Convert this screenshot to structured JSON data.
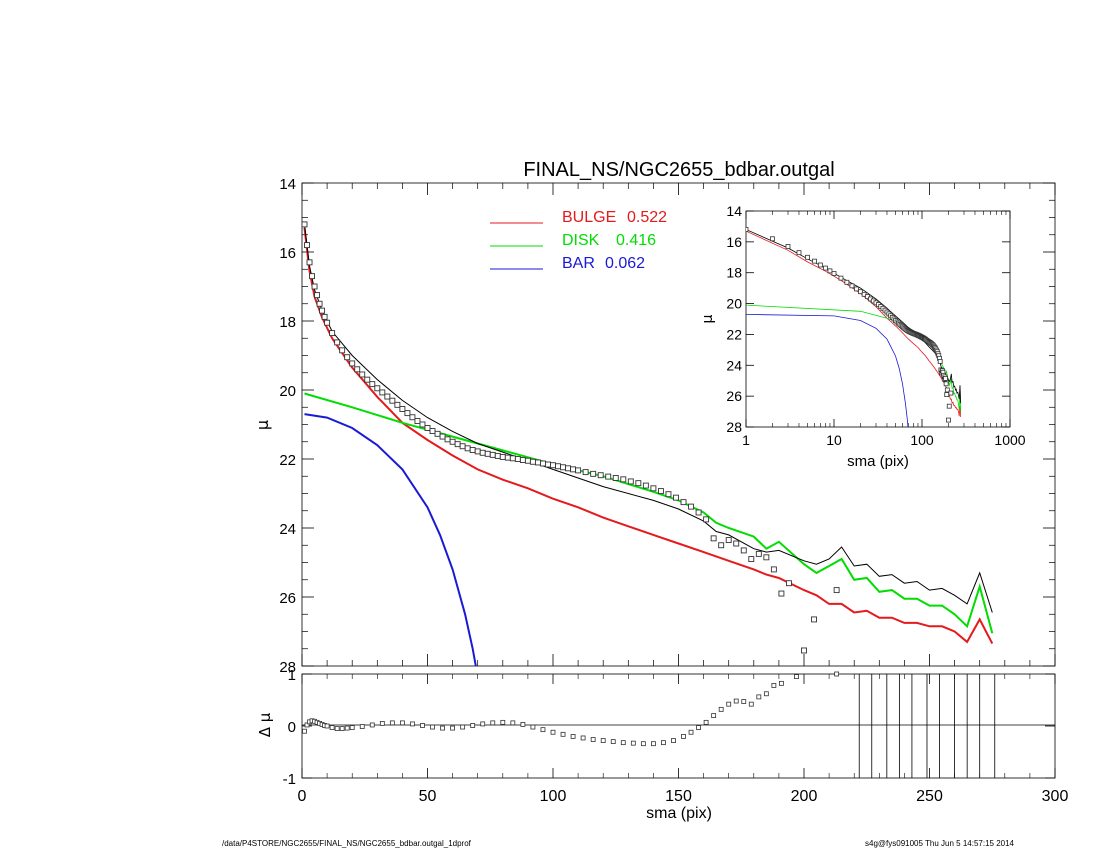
{
  "chart_data": [
    {
      "type": "line",
      "title": "FINAL_NS/NGC2655_bdbar.outgal",
      "xlabel": "sma (pix)",
      "ylabel": "μ",
      "xlim": [
        0,
        300
      ],
      "ylim": [
        28,
        14
      ],
      "xticks": [
        "0",
        "50",
        "100",
        "150",
        "200",
        "250",
        "300"
      ],
      "yticks": [
        "14",
        "16",
        "18",
        "20",
        "22",
        "24",
        "26",
        "28"
      ],
      "legend_position": "top-center",
      "components": [
        {
          "label": "BULGE",
          "fraction": "0.522",
          "color": "#e41a1c"
        },
        {
          "label": "DISK",
          "fraction": "0.416",
          "color": "#00dd00"
        },
        {
          "label": "BAR",
          "fraction": "0.062",
          "color": "#1a1ad4"
        }
      ],
      "series": [
        {
          "name": "BULGE",
          "color": "#e41a1c",
          "x": [
            1,
            3,
            5,
            8,
            12,
            20,
            30,
            40,
            50,
            60,
            70,
            80,
            90,
            100,
            110,
            120,
            130,
            140,
            150,
            160,
            170,
            180,
            185,
            190,
            200,
            205,
            210,
            215,
            220,
            225,
            230,
            235,
            240,
            245,
            250,
            255,
            260,
            265,
            270,
            275
          ],
          "y": [
            15.3,
            16.55,
            17.3,
            17.9,
            18.5,
            19.35,
            20.2,
            20.95,
            21.45,
            21.9,
            22.3,
            22.6,
            22.85,
            23.15,
            23.4,
            23.7,
            23.95,
            24.2,
            24.45,
            24.7,
            24.95,
            25.2,
            25.35,
            25.45,
            25.8,
            25.95,
            26.2,
            26.2,
            26.45,
            26.4,
            26.6,
            26.6,
            26.75,
            26.75,
            26.85,
            26.85,
            27.0,
            27.3,
            26.65,
            27.35
          ]
        },
        {
          "name": "DISK",
          "color": "#00dd00",
          "x": [
            1,
            20,
            40,
            60,
            80,
            100,
            120,
            140,
            150,
            160,
            165,
            170,
            180,
            185,
            190,
            200,
            205,
            210,
            215,
            220,
            225,
            230,
            235,
            240,
            245,
            250,
            255,
            260,
            265,
            270,
            275
          ],
          "y": [
            20.1,
            20.5,
            20.95,
            21.35,
            21.75,
            22.15,
            22.5,
            22.95,
            23.2,
            23.55,
            23.85,
            24.0,
            24.25,
            24.6,
            24.4,
            25.05,
            25.3,
            25.1,
            24.9,
            25.5,
            25.45,
            25.85,
            25.8,
            26.05,
            26.05,
            26.25,
            26.25,
            26.5,
            26.85,
            25.7,
            27.05
          ]
        },
        {
          "name": "BAR",
          "color": "#1a1ad4",
          "x": [
            1,
            10,
            20,
            30,
            40,
            50,
            55,
            60,
            65,
            68,
            70
          ],
          "y": [
            20.7,
            20.8,
            21.1,
            21.6,
            22.3,
            23.4,
            24.2,
            25.2,
            26.5,
            27.5,
            28.3
          ]
        },
        {
          "name": "",
          "color": "#000000",
          "x": [
            1,
            3,
            5,
            8,
            12,
            20,
            30,
            40,
            50,
            60,
            70,
            80,
            90,
            100,
            120,
            140,
            150,
            160,
            165,
            170,
            180,
            185,
            190,
            200,
            205,
            210,
            215,
            220,
            225,
            230,
            235,
            240,
            245,
            250,
            255,
            260,
            265,
            270,
            275
          ],
          "y": [
            15.2,
            16.4,
            17.1,
            17.7,
            18.3,
            19.0,
            19.7,
            20.3,
            20.8,
            21.2,
            21.55,
            21.8,
            22.05,
            22.3,
            22.8,
            23.2,
            23.45,
            23.8,
            24.1,
            24.2,
            24.6,
            24.7,
            24.65,
            24.95,
            25.05,
            24.9,
            24.55,
            25.1,
            25.05,
            25.4,
            25.35,
            25.6,
            25.55,
            25.8,
            25.75,
            25.95,
            26.2,
            25.3,
            26.45
          ]
        }
      ],
      "data_points": {
        "marker": "open-square",
        "x": [
          1,
          2,
          3,
          4,
          5,
          6,
          7,
          8,
          9,
          10,
          12,
          14,
          16,
          18,
          20,
          22,
          24,
          26,
          28,
          30,
          32,
          34,
          36,
          38,
          40,
          42,
          44,
          46,
          48,
          50,
          52,
          54,
          56,
          58,
          60,
          62,
          64,
          66,
          68,
          70,
          72,
          74,
          76,
          78,
          80,
          82,
          84,
          86,
          88,
          90,
          92,
          94,
          96,
          98,
          100,
          102,
          104,
          106,
          108,
          110,
          113,
          116,
          119,
          122,
          125,
          128,
          131,
          134,
          137,
          140,
          143,
          146,
          149,
          152,
          155,
          158,
          161,
          164,
          167,
          170,
          173,
          176,
          179,
          182,
          185,
          188,
          191,
          194,
          200,
          204,
          213
        ],
        "y": [
          15.2,
          15.8,
          16.3,
          16.7,
          17.0,
          17.25,
          17.5,
          17.7,
          17.88,
          18.05,
          18.35,
          18.62,
          18.85,
          19.05,
          19.23,
          19.4,
          19.55,
          19.7,
          19.83,
          19.95,
          20.07,
          20.19,
          20.31,
          20.43,
          20.55,
          20.67,
          20.79,
          20.9,
          21.0,
          21.1,
          21.19,
          21.27,
          21.35,
          21.43,
          21.5,
          21.57,
          21.63,
          21.69,
          21.74,
          21.78,
          21.82,
          21.85,
          21.88,
          21.91,
          21.94,
          21.96,
          21.98,
          22.0,
          22.03,
          22.05,
          22.08,
          22.1,
          22.13,
          22.16,
          22.18,
          22.21,
          22.24,
          22.27,
          22.3,
          22.33,
          22.38,
          22.43,
          22.47,
          22.51,
          22.55,
          22.59,
          22.65,
          22.7,
          22.77,
          22.85,
          22.93,
          23.02,
          23.12,
          23.25,
          23.38,
          23.55,
          23.75,
          24.3,
          24.5,
          24.35,
          24.45,
          24.65,
          24.9,
          24.75,
          24.85,
          25.2,
          25.9,
          25.6,
          27.55,
          26.65,
          25.8
        ]
      }
    },
    {
      "type": "line",
      "title": "",
      "xlabel": "sma (pix)",
      "ylabel": "μ",
      "x_scale": "log",
      "xlim": [
        1,
        1000
      ],
      "ylim": [
        28,
        14
      ],
      "xticks": [
        "1",
        "10",
        "100",
        "1000"
      ],
      "yticks": [
        "14",
        "16",
        "18",
        "20",
        "22",
        "24",
        "26",
        "28"
      ]
    },
    {
      "type": "scatter",
      "title": "",
      "xlabel": "sma (pix)",
      "ylabel": "Δ μ",
      "xlim": [
        0,
        300
      ],
      "ylim": [
        -1,
        1
      ],
      "xticks": [
        "0",
        "50",
        "100",
        "150",
        "200",
        "250",
        "300"
      ],
      "yticks": [
        "-1",
        "0",
        "1"
      ],
      "residuals": {
        "x": [
          1,
          2,
          3,
          4,
          5,
          6,
          7,
          8,
          9,
          10,
          12,
          14,
          16,
          18,
          20,
          24,
          28,
          32,
          36,
          40,
          44,
          48,
          52,
          56,
          60,
          64,
          68,
          72,
          76,
          80,
          84,
          88,
          92,
          96,
          100,
          104,
          108,
          112,
          116,
          120,
          124,
          128,
          132,
          136,
          140,
          144,
          148,
          152,
          155,
          158,
          161,
          164,
          167,
          170,
          173,
          176,
          179,
          182,
          185,
          188,
          191,
          197,
          213
        ],
        "y": [
          -0.1,
          0.02,
          0.08,
          0.1,
          0.09,
          0.07,
          0.05,
          0.03,
          0.01,
          0.0,
          -0.03,
          -0.05,
          -0.05,
          -0.04,
          -0.03,
          -0.01,
          0.02,
          0.05,
          0.06,
          0.06,
          0.04,
          0.01,
          -0.02,
          -0.04,
          -0.04,
          -0.02,
          0.01,
          0.04,
          0.06,
          0.07,
          0.06,
          0.03,
          -0.02,
          -0.07,
          -0.12,
          -0.16,
          -0.2,
          -0.23,
          -0.26,
          -0.28,
          -0.3,
          -0.32,
          -0.33,
          -0.34,
          -0.34,
          -0.32,
          -0.28,
          -0.2,
          -0.12,
          -0.03,
          0.07,
          0.2,
          0.32,
          0.42,
          0.48,
          0.47,
          0.42,
          0.56,
          0.62,
          0.78,
          0.82,
          0.95,
          1.0
        ]
      },
      "vertical_lines_x": [
        222,
        227,
        233,
        238,
        243,
        249,
        254,
        260,
        265,
        270,
        276
      ]
    }
  ],
  "footer": {
    "left": "/data/P4STORE/NGC2655/FINAL_NS/NGC2655_bdbar.outgal_1dprof",
    "right": "s4g@fys091005 Thu Jun  5 14:57:15 2014"
  }
}
